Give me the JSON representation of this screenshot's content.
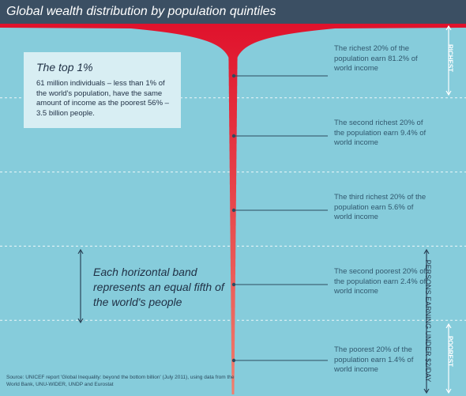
{
  "title": "Global wealth distribution by population quintiles",
  "callout": {
    "heading": "The top 1%",
    "body": "61 million individuals – less than 1% of the world's population, have the same amount of income as the poorest 56% – 3.5 billion people."
  },
  "band_note": "Each horizontal band represents an equal fifth of the world's people",
  "side_labels": {
    "richest": "RICHEST",
    "poorest": "POOREST",
    "under2": "PERSONS EARNING UNDER $2/DAY"
  },
  "source": "Source: UNICEF report 'Global Inequality: beyond the bottom billion' (July 2011), using data from the World Bank, UNU-WIDER, UNDP and Eurostat",
  "colors": {
    "background": "#86ccdb",
    "title_bar": "#3b4f63",
    "champagne_top": "#e0122c",
    "champagne_bottom": "#f07f6e",
    "callout_box": "#d8eef3"
  },
  "chart_data": {
    "type": "area",
    "title": "Global wealth distribution by population quintiles",
    "categories": [
      "Richest 20%",
      "Second richest 20%",
      "Third richest 20%",
      "Second poorest 20%",
      "Poorest 20%"
    ],
    "values": [
      81.2,
      9.4,
      5.6,
      2.4,
      1.4
    ],
    "unit": "% of world income",
    "labels": [
      "The richest 20% of the population earn 81.2% of world income",
      "The second richest 20% of the population earn 9.4% of world income",
      "The third richest 20% of the population earn 5.6% of world income",
      "The second poorest 20% of the population earn 2.4% of world income",
      "The poorest 20% of the population earn 1.4% of world income"
    ]
  }
}
